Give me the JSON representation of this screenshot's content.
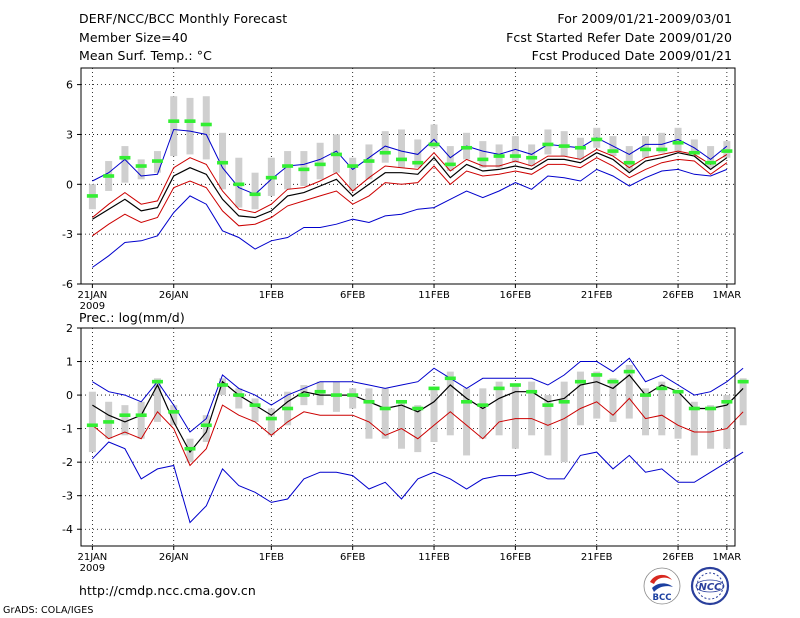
{
  "header": {
    "title": "DERF/NCC/BCC Monthly Forecast",
    "member_size": "Member Size=40",
    "panel1_variable": "Mean Surf. Temp.: °C",
    "forecast_period": "For 2009/01/21-2009/03/01",
    "started_refer": "Fcst Started Refer Date 2009/01/20",
    "produced": "Fcst Produced Date 2009/01/21"
  },
  "footer": {
    "url": "http://cmdp.ncc.cma.gov.cn",
    "credit": "GrADS: COLA/IGES",
    "logo_bcc_text": "BCC",
    "logo_ncc_text": "NCC"
  },
  "colors": {
    "median": "#000000",
    "quartile": "#cc0000",
    "extreme": "#0000cc",
    "box": "#cfcfcf",
    "observed": "#33ee33"
  },
  "chart_data": [
    {
      "type": "line",
      "title": "Mean Surf. Temp.: °C",
      "ylim": [
        -6,
        7
      ],
      "yticks": [
        -6,
        -3,
        0,
        3,
        6
      ],
      "xlim": [
        -0.7,
        39.5
      ],
      "xticks": [
        {
          "day": 0,
          "label": "21JAN"
        },
        {
          "day": 5,
          "label": "26JAN"
        },
        {
          "day": 11,
          "label": "1FEB"
        },
        {
          "day": 16,
          "label": "6FEB"
        },
        {
          "day": 21,
          "label": "11FEB"
        },
        {
          "day": 26,
          "label": "16FEB"
        },
        {
          "day": 31,
          "label": "21FEB"
        },
        {
          "day": 36,
          "label": "26FEB"
        },
        {
          "day": 39,
          "label": "1MAR"
        }
      ],
      "year_label": "2009",
      "grid": true,
      "series": [
        {
          "name": "max",
          "values": [
            0.2,
            0.7,
            1.5,
            0.5,
            0.6,
            3.3,
            3.2,
            3.0,
            1.0,
            -0.2,
            -0.6,
            0.3,
            1.1,
            1.2,
            1.5,
            2.0,
            0.9,
            1.6,
            2.3,
            2.0,
            1.8,
            2.7,
            1.6,
            2.3,
            2.0,
            1.8,
            2.1,
            1.8,
            2.4,
            2.3,
            2.2,
            2.8,
            2.3,
            1.8,
            2.4,
            2.4,
            2.7,
            2.2,
            1.5,
            2.3
          ]
        },
        {
          "name": "upper_quartile",
          "values": [
            -2.0,
            -1.2,
            -0.5,
            -1.2,
            -1.0,
            1.0,
            1.6,
            1.2,
            -0.4,
            -1.5,
            -1.7,
            -1.2,
            -0.3,
            -0.2,
            0.2,
            0.7,
            -0.4,
            0.4,
            1.1,
            1.0,
            0.9,
            1.9,
            0.8,
            1.5,
            1.1,
            1.1,
            1.4,
            1.1,
            1.7,
            1.7,
            1.5,
            2.1,
            1.7,
            1.0,
            1.6,
            1.8,
            2.0,
            1.8,
            1.2,
            1.8
          ]
        },
        {
          "name": "median",
          "values": [
            -2.1,
            -1.5,
            -0.9,
            -1.6,
            -1.4,
            0.5,
            1.0,
            0.6,
            -0.9,
            -1.9,
            -2.0,
            -1.6,
            -0.7,
            -0.5,
            -0.1,
            0.3,
            -0.7,
            0.0,
            0.7,
            0.7,
            0.6,
            1.6,
            0.4,
            1.2,
            0.8,
            0.9,
            1.1,
            0.9,
            1.5,
            1.5,
            1.3,
            1.9,
            1.5,
            0.7,
            1.4,
            1.6,
            1.9,
            1.7,
            0.9,
            1.6
          ]
        },
        {
          "name": "lower_quartile",
          "values": [
            -3.1,
            -2.4,
            -1.8,
            -2.3,
            -2.0,
            -0.2,
            0.2,
            -0.2,
            -1.6,
            -2.5,
            -2.4,
            -2.0,
            -1.3,
            -1.0,
            -0.7,
            -0.4,
            -1.2,
            -0.7,
            0.1,
            0.0,
            0.1,
            1.1,
            0.0,
            0.8,
            0.5,
            0.6,
            0.8,
            0.6,
            1.2,
            1.2,
            1.0,
            1.6,
            1.1,
            0.4,
            0.9,
            1.3,
            1.5,
            1.4,
            0.6,
            1.3
          ]
        },
        {
          "name": "min",
          "values": [
            -5.0,
            -4.3,
            -3.5,
            -3.4,
            -3.1,
            -1.7,
            -0.7,
            -1.2,
            -2.8,
            -3.2,
            -3.9,
            -3.4,
            -3.2,
            -2.6,
            -2.6,
            -2.4,
            -2.1,
            -2.3,
            -1.9,
            -1.8,
            -1.5,
            -1.4,
            -0.9,
            -0.4,
            -0.8,
            -0.4,
            0.1,
            -0.3,
            0.5,
            0.4,
            0.2,
            0.9,
            0.5,
            -0.1,
            0.4,
            0.8,
            0.9,
            0.6,
            0.5,
            0.9
          ]
        }
      ],
      "boxes": [
        [
          -1.5,
          0.0
        ],
        [
          -0.4,
          1.4
        ],
        [
          0.1,
          2.3
        ],
        [
          0.3,
          1.5
        ],
        [
          0.7,
          2.0
        ],
        [
          1.7,
          5.3
        ],
        [
          1.8,
          5.2
        ],
        [
          1.5,
          5.3
        ],
        [
          -0.3,
          3.1
        ],
        [
          -1.4,
          1.6
        ],
        [
          -1.5,
          0.7
        ],
        [
          -0.7,
          1.6
        ],
        [
          -0.3,
          2.0
        ],
        [
          -0.1,
          2.0
        ],
        [
          0.3,
          2.5
        ],
        [
          0.7,
          3.0
        ],
        [
          -0.4,
          1.6
        ],
        [
          0.3,
          2.4
        ],
        [
          1.3,
          3.2
        ],
        [
          1.0,
          3.3
        ],
        [
          1.0,
          2.7
        ],
        [
          2.2,
          3.6
        ],
        [
          0.8,
          2.3
        ],
        [
          1.5,
          3.1
        ],
        [
          1.0,
          2.6
        ],
        [
          1.0,
          2.4
        ],
        [
          1.3,
          2.9
        ],
        [
          1.1,
          2.4
        ],
        [
          1.8,
          3.3
        ],
        [
          1.7,
          3.2
        ],
        [
          1.5,
          2.8
        ],
        [
          2.2,
          3.4
        ],
        [
          1.7,
          2.9
        ],
        [
          0.8,
          2.3
        ],
        [
          1.6,
          2.9
        ],
        [
          1.9,
          3.1
        ],
        [
          2.0,
          3.4
        ],
        [
          1.8,
          2.7
        ],
        [
          1.0,
          2.3
        ],
        [
          1.6,
          2.6
        ]
      ],
      "observed": [
        -0.7,
        0.5,
        1.6,
        1.1,
        1.4,
        3.8,
        3.8,
        3.6,
        1.3,
        0.0,
        -0.6,
        0.4,
        1.1,
        0.9,
        1.2,
        1.8,
        1.1,
        1.4,
        1.9,
        1.5,
        1.3,
        2.4,
        1.2,
        2.2,
        1.5,
        1.7,
        1.7,
        1.6,
        2.4,
        2.3,
        2.2,
        2.7,
        2.0,
        1.3,
        2.1,
        2.1,
        2.5,
        1.9,
        1.3,
        2.0
      ]
    },
    {
      "type": "line",
      "title": "Prec.: log(mm/d)",
      "ylim": [
        -4.5,
        2
      ],
      "yticks": [
        -4,
        -3,
        -2,
        -1,
        0,
        1,
        2
      ],
      "xlim": [
        -0.7,
        39.5
      ],
      "xticks": [
        {
          "day": 0,
          "label": "21JAN"
        },
        {
          "day": 5,
          "label": "26JAN"
        },
        {
          "day": 11,
          "label": "1FEB"
        },
        {
          "day": 16,
          "label": "6FEB"
        },
        {
          "day": 21,
          "label": "11FEB"
        },
        {
          "day": 26,
          "label": "16FEB"
        },
        {
          "day": 31,
          "label": "21FEB"
        },
        {
          "day": 36,
          "label": "26FEB"
        },
        {
          "day": 39,
          "label": "1MAR"
        }
      ],
      "year_label": "2009",
      "grid": true,
      "series": [
        {
          "name": "max",
          "values": [
            0.4,
            0.1,
            0.0,
            -0.2,
            0.4,
            -0.3,
            -1.1,
            -0.7,
            0.6,
            0.2,
            0.0,
            -0.3,
            0.0,
            0.2,
            0.4,
            0.4,
            0.4,
            0.3,
            0.2,
            0.3,
            0.4,
            0.8,
            0.5,
            0.2,
            0.5,
            0.5,
            0.5,
            0.5,
            0.3,
            0.6,
            1.0,
            1.0,
            0.7,
            1.1,
            0.4,
            0.6,
            0.3,
            0.0,
            0.1,
            0.4,
            0.8
          ]
        },
        {
          "name": "median",
          "values": [
            -0.3,
            -0.6,
            -0.8,
            -0.6,
            0.3,
            -0.8,
            -1.7,
            -1.1,
            0.4,
            0.0,
            -0.3,
            -0.6,
            -0.2,
            0.1,
            0.0,
            0.0,
            0.0,
            -0.2,
            -0.4,
            -0.3,
            -0.5,
            -0.2,
            0.3,
            -0.1,
            -0.4,
            -0.1,
            0.1,
            0.1,
            -0.2,
            -0.1,
            0.3,
            0.4,
            0.2,
            0.6,
            0.0,
            0.3,
            0.1,
            -0.4,
            -0.4,
            -0.3,
            0.2
          ]
        },
        {
          "name": "lower_quartile",
          "values": [
            -0.9,
            -1.3,
            -1.1,
            -1.3,
            -0.5,
            -1.0,
            -2.1,
            -1.6,
            -0.3,
            -0.6,
            -0.8,
            -1.2,
            -0.8,
            -0.5,
            -0.6,
            -0.6,
            -0.6,
            -0.8,
            -1.2,
            -1.0,
            -1.3,
            -0.9,
            -0.5,
            -0.9,
            -1.3,
            -0.8,
            -0.7,
            -0.7,
            -0.9,
            -0.7,
            -0.4,
            -0.2,
            -0.6,
            -0.1,
            -0.7,
            -0.6,
            -0.9,
            -1.1,
            -1.1,
            -1.0,
            -0.5
          ]
        },
        {
          "name": "min",
          "values": [
            -1.9,
            -1.4,
            -1.6,
            -2.5,
            -2.2,
            -2.1,
            -3.8,
            -3.3,
            -2.2,
            -2.7,
            -2.9,
            -3.2,
            -3.1,
            -2.5,
            -2.3,
            -2.3,
            -2.4,
            -2.8,
            -2.6,
            -3.1,
            -2.5,
            -2.3,
            -2.5,
            -2.8,
            -2.5,
            -2.4,
            -2.4,
            -2.3,
            -2.5,
            -2.5,
            -1.8,
            -1.7,
            -2.2,
            -1.8,
            -2.3,
            -2.2,
            -2.6,
            -2.6,
            -2.3,
            -2.0,
            -1.7
          ]
        }
      ],
      "boxes": [
        [
          -1.7,
          0.1
        ],
        [
          -1.3,
          -0.2
        ],
        [
          -1.2,
          -0.3
        ],
        [
          -1.3,
          -0.2
        ],
        [
          -0.8,
          0.5
        ],
        [
          -0.9,
          -0.3
        ],
        [
          -2.0,
          -1.3
        ],
        [
          -1.4,
          -0.6
        ],
        [
          0.0,
          0.5
        ],
        [
          -0.4,
          0.2
        ],
        [
          -0.8,
          -0.1
        ],
        [
          -1.2,
          -0.4
        ],
        [
          -0.9,
          0.1
        ],
        [
          -0.3,
          0.3
        ],
        [
          -0.3,
          0.4
        ],
        [
          -0.5,
          0.4
        ],
        [
          -0.4,
          0.2
        ],
        [
          -1.3,
          0.2
        ],
        [
          -1.3,
          0.2
        ],
        [
          -1.6,
          -0.2
        ],
        [
          -1.7,
          -0.3
        ],
        [
          -1.4,
          0.2
        ],
        [
          -1.2,
          0.7
        ],
        [
          -1.8,
          0.2
        ],
        [
          -1.3,
          0.2
        ],
        [
          -1.2,
          0.4
        ],
        [
          -1.6,
          0.3
        ],
        [
          -1.2,
          0.4
        ],
        [
          -1.8,
          0.0
        ],
        [
          -2.0,
          0.4
        ],
        [
          -0.9,
          0.7
        ],
        [
          -0.7,
          0.7
        ],
        [
          -0.8,
          0.5
        ],
        [
          -0.7,
          0.9
        ],
        [
          -1.2,
          0.2
        ],
        [
          -1.2,
          0.4
        ],
        [
          -1.3,
          0.1
        ],
        [
          -1.8,
          -0.2
        ],
        [
          -1.6,
          -0.3
        ],
        [
          -1.6,
          0.0
        ],
        [
          -0.9,
          0.5
        ]
      ],
      "observed": [
        -0.9,
        -0.8,
        -0.6,
        -0.6,
        0.4,
        -0.5,
        -1.6,
        -0.9,
        0.3,
        0.0,
        -0.3,
        -0.7,
        -0.4,
        0.0,
        0.1,
        0.0,
        0.0,
        -0.2,
        -0.4,
        -0.2,
        -0.4,
        0.2,
        0.5,
        -0.2,
        -0.3,
        0.2,
        0.3,
        0.1,
        -0.3,
        -0.2,
        0.4,
        0.6,
        0.4,
        0.7,
        0.0,
        0.2,
        0.1,
        -0.4,
        -0.4,
        -0.2,
        0.4
      ]
    }
  ]
}
